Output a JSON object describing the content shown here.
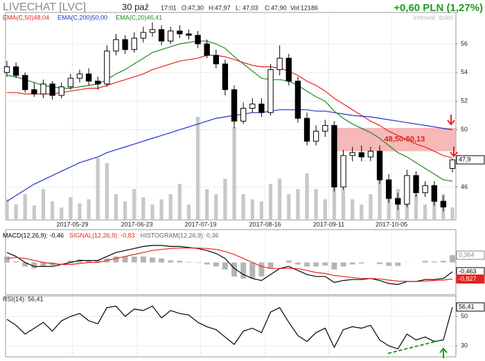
{
  "header": {
    "date": "30 paź",
    "time": "17:01",
    "open": "O:47,30",
    "high": "H:47,97",
    "low": "L: 47,03",
    "close": "C:47,90",
    "volume": "Vol:12186",
    "change": "+0,60 PLN (1,27%)",
    "interval": "Interwał: dzień"
  },
  "chart_data": [
    {
      "type": "candlestick",
      "title": "LIVECHAT [LVC]",
      "open": [
        54.0,
        54.4,
        53.8,
        52.8,
        52.5,
        53.2,
        52.4,
        53.0,
        53.6,
        53.9,
        53.4,
        53.2,
        55.5,
        56.3,
        55.6,
        56.4,
        56.8,
        57.0,
        56.2,
        56.9,
        56.7,
        56.6,
        56.0,
        55.2,
        54.6,
        52.8,
        50.6,
        51.5,
        51.8,
        51.2,
        54.2,
        55.0,
        53.4,
        50.8,
        49.2,
        49.9,
        50.3,
        46.0,
        48.2,
        48.4,
        48.1,
        48.5,
        46.5,
        45.2,
        44.8,
        46.8,
        45.6,
        46.1,
        45.0,
        47.3
      ],
      "high": [
        54.8,
        54.7,
        54.0,
        53.3,
        53.5,
        53.4,
        53.3,
        53.9,
        54.2,
        54.3,
        53.7,
        55.9,
        56.7,
        56.6,
        56.8,
        57.2,
        57.5,
        57.3,
        57.2,
        57.3,
        57.0,
        56.9,
        56.3,
        55.6,
        54.9,
        53.1,
        51.9,
        52.2,
        52.2,
        54.6,
        55.9,
        55.3,
        53.7,
        51.2,
        50.3,
        50.7,
        50.6,
        48.6,
        48.8,
        48.9,
        48.8,
        48.9,
        46.9,
        45.6,
        47.2,
        47.1,
        46.4,
        46.4,
        45.4,
        47.97
      ],
      "low": [
        53.7,
        53.6,
        52.6,
        52.3,
        52.2,
        52.1,
        52.2,
        52.8,
        53.3,
        53.1,
        52.8,
        53.0,
        55.2,
        55.3,
        55.4,
        56.1,
        56.5,
        55.9,
        56.0,
        56.4,
        56.3,
        55.7,
        55.0,
        54.3,
        52.4,
        50.1,
        50.4,
        51.2,
        50.9,
        51.0,
        53.8,
        53.1,
        50.5,
        48.9,
        48.9,
        49.5,
        45.7,
        45.8,
        47.8,
        47.8,
        47.8,
        46.2,
        44.9,
        44.4,
        44.6,
        45.3,
        45.3,
        44.7,
        44.3,
        47.03
      ],
      "close": [
        54.4,
        53.8,
        52.8,
        52.5,
        53.2,
        52.4,
        53.0,
        53.6,
        53.9,
        53.4,
        53.2,
        55.5,
        56.3,
        55.6,
        56.4,
        56.8,
        57.0,
        56.2,
        56.9,
        56.7,
        56.6,
        56.0,
        55.2,
        54.6,
        52.8,
        50.6,
        51.5,
        51.8,
        51.2,
        54.2,
        55.0,
        53.4,
        50.8,
        49.2,
        49.9,
        50.3,
        46.0,
        48.2,
        48.4,
        48.1,
        48.5,
        46.5,
        45.2,
        44.8,
        46.8,
        45.6,
        46.1,
        45.0,
        44.6,
        47.9
      ],
      "up_color": "#ffffff",
      "down_color": "#000000",
      "last_label": "47,9",
      "volume": [
        20000,
        15000,
        25000,
        14000,
        30000,
        18000,
        12000,
        22000,
        16000,
        20000,
        60000,
        55000,
        25000,
        18000,
        30000,
        22000,
        15000,
        20000,
        25000,
        35000,
        15000,
        100000,
        30000,
        25000,
        40000,
        90000,
        25000,
        20000,
        18000,
        35000,
        40000,
        25000,
        30000,
        45000,
        30000,
        20000,
        35000,
        30000,
        20000,
        15000,
        25000,
        40000,
        35000,
        30000,
        20000,
        25000,
        15000,
        30000,
        25000,
        12186
      ],
      "volume_color": "#c8c8c8",
      "vlim": [
        0,
        200000
      ],
      "series": [
        {
          "name": "EMA(C,50)48,04",
          "color": "#e8211c",
          "values": [
            52.6,
            52.6,
            52.5,
            52.5,
            52.5,
            52.5,
            52.6,
            52.7,
            52.8,
            52.9,
            52.9,
            53.1,
            53.3,
            53.5,
            53.7,
            53.9,
            54.2,
            54.4,
            54.6,
            54.8,
            54.9,
            55.0,
            55.2,
            55.2,
            55.1,
            54.9,
            54.7,
            54.5,
            54.4,
            54.4,
            54.3,
            54.1,
            53.8,
            53.4,
            53.1,
            52.7,
            52.2,
            51.8,
            51.4,
            51.0,
            50.6,
            50.3,
            49.9,
            49.6,
            49.3,
            49.0,
            48.8,
            48.5,
            48.2,
            48.04
          ]
        },
        {
          "name": "EMA(C,200)50,00",
          "color": "#1a35c8",
          "values": [
            45.0,
            45.4,
            45.8,
            46.2,
            46.5,
            46.8,
            47.1,
            47.4,
            47.7,
            47.9,
            48.1,
            48.4,
            48.6,
            48.8,
            49.0,
            49.2,
            49.4,
            49.6,
            49.8,
            50.0,
            50.2,
            50.4,
            50.6,
            50.8,
            50.9,
            51.0,
            51.1,
            51.2,
            51.2,
            51.3,
            51.4,
            51.4,
            51.4,
            51.4,
            51.3,
            51.3,
            51.2,
            51.1,
            51.0,
            50.95,
            50.9,
            50.8,
            50.7,
            50.6,
            50.5,
            50.4,
            50.3,
            50.2,
            50.1,
            50.0
          ]
        },
        {
          "name": "EMA(C,20)46,41",
          "color": "#1f8a1f",
          "values": [
            53.8,
            53.7,
            53.5,
            53.3,
            53.1,
            53.0,
            52.9,
            52.9,
            53.0,
            53.1,
            53.2,
            53.5,
            53.9,
            54.2,
            54.6,
            55.0,
            55.4,
            55.6,
            55.8,
            56.0,
            56.1,
            56.2,
            56.2,
            56.0,
            55.7,
            55.1,
            54.6,
            54.1,
            53.6,
            53.5,
            53.5,
            53.4,
            53.1,
            52.7,
            52.3,
            52.0,
            51.3,
            50.8,
            50.4,
            50.1,
            49.8,
            49.4,
            48.9,
            48.4,
            48.1,
            47.7,
            47.3,
            46.9,
            46.5,
            46.41
          ]
        }
      ],
      "zone": {
        "range": [
          48.5,
          50.13
        ],
        "start": 35.8,
        "label": "48,50-50,13",
        "color": "#f4a6a6",
        "label_color": "#d7261e"
      },
      "ylim": [
        43.7,
        58.1
      ],
      "yticks": [
        46,
        50,
        52,
        54,
        56
      ],
      "xticks": [
        {
          "value": 7.2,
          "label": "2017-05-29"
        },
        {
          "value": 14.3,
          "label": "2017-06-23"
        },
        {
          "value": 21.3,
          "label": "2017-07-19"
        },
        {
          "value": 28.4,
          "label": "2017-08-16"
        },
        {
          "value": 35.4,
          "label": "2017-09-11"
        },
        {
          "value": 42.3,
          "label": "2017-10-05"
        }
      ],
      "grid": true
    },
    {
      "type": "macd",
      "series": [
        {
          "name": "MACD(12,26,9): -0,46",
          "color": "#000000",
          "last_label": "-0,463",
          "values": [
            0.5,
            0.3,
            0.0,
            -0.2,
            -0.2,
            -0.2,
            -0.1,
            0.0,
            0.1,
            0.1,
            0.1,
            0.3,
            0.5,
            0.6,
            0.7,
            0.8,
            0.85,
            0.85,
            0.8,
            0.8,
            0.75,
            0.7,
            0.6,
            0.45,
            0.2,
            -0.3,
            -0.6,
            -0.8,
            -0.9,
            -0.6,
            -0.3,
            -0.2,
            -0.4,
            -0.6,
            -0.7,
            -0.7,
            -1.0,
            -0.9,
            -0.85,
            -0.85,
            -0.8,
            -0.9,
            -1.05,
            -1.1,
            -0.95,
            -0.95,
            -0.85,
            -0.85,
            -0.8,
            -0.463
          ]
        },
        {
          "name": "SIGNAL(12,26,9): -0,83",
          "color": "#e8211c",
          "last_label": "-0,827",
          "values": [
            0.2,
            0.25,
            0.2,
            0.1,
            0.0,
            -0.05,
            -0.1,
            -0.1,
            -0.05,
            0.0,
            0.0,
            0.1,
            0.2,
            0.3,
            0.4,
            0.5,
            0.6,
            0.65,
            0.7,
            0.72,
            0.72,
            0.72,
            0.7,
            0.65,
            0.55,
            0.4,
            0.2,
            0.0,
            -0.2,
            -0.3,
            -0.3,
            -0.3,
            -0.3,
            -0.4,
            -0.5,
            -0.55,
            -0.65,
            -0.7,
            -0.75,
            -0.8,
            -0.8,
            -0.82,
            -0.88,
            -0.93,
            -0.94,
            -0.95,
            -0.93,
            -0.9,
            -0.88,
            -0.827
          ]
        },
        {
          "name": "HISTOGRAM(12,26,9): 0,36",
          "color": "#b4b4b4",
          "last_label": "0,364",
          "kind": "bar",
          "values": [
            0.3,
            0.05,
            -0.2,
            -0.3,
            -0.2,
            -0.15,
            0.0,
            0.1,
            0.15,
            0.1,
            0.1,
            0.2,
            0.3,
            0.3,
            0.3,
            0.3,
            0.25,
            0.2,
            0.1,
            0.08,
            0.03,
            -0.02,
            -0.1,
            -0.2,
            -0.35,
            -0.7,
            -0.8,
            -0.8,
            -0.7,
            -0.3,
            0.0,
            0.1,
            -0.1,
            -0.2,
            -0.2,
            -0.15,
            -0.35,
            -0.2,
            -0.1,
            -0.05,
            0.0,
            -0.08,
            -0.17,
            -0.17,
            -0.01,
            0.0,
            0.08,
            0.05,
            0.08,
            0.364
          ]
        }
      ],
      "ylim": [
        -1.57,
        1.02
      ]
    },
    {
      "type": "line",
      "series": [
        {
          "name": "RSI(14): 56,41",
          "color": "#000000",
          "last_label": "56,41",
          "values": [
            48,
            44,
            38,
            42,
            46,
            40,
            47,
            50,
            52,
            47,
            45,
            56,
            57,
            50,
            55,
            54,
            57,
            49,
            54,
            52,
            51,
            46,
            43,
            41,
            36,
            31,
            40,
            42,
            39,
            53,
            56,
            46,
            37,
            33,
            39,
            42,
            29,
            41,
            43,
            42,
            44,
            34,
            30,
            28,
            38,
            34,
            36,
            33,
            34,
            56.41
          ]
        }
      ],
      "ylim": [
        23,
        62
      ],
      "yticks": [
        30,
        50
      ],
      "grid": true
    }
  ]
}
